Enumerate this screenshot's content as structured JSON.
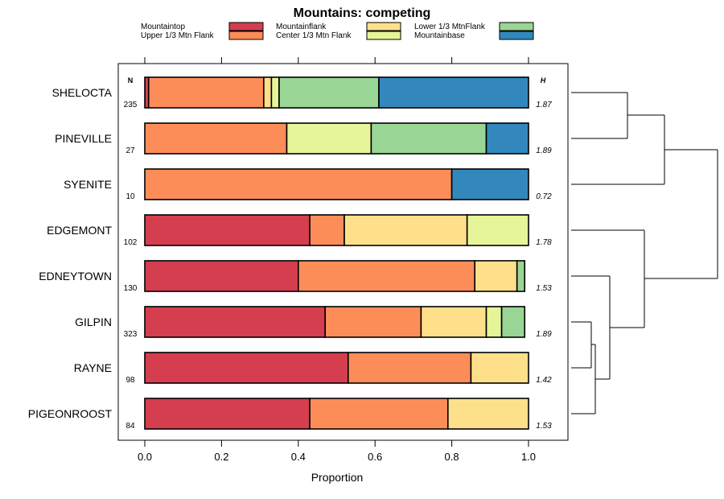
{
  "chart_data": {
    "type": "bar",
    "stacked": true,
    "orientation": "horizontal",
    "title": "Mountains: competing",
    "xlabel": "Proportion",
    "xlim": [
      0,
      1
    ],
    "xticks": [
      "0.0",
      "0.2",
      "0.4",
      "0.6",
      "0.8",
      "1.0"
    ],
    "n_header": "N",
    "h_header": "H",
    "legend": [
      {
        "name": "Mountaintop",
        "color": "#d53e4f"
      },
      {
        "name": "Upper 1/3 Mtn Flank",
        "color": "#fc8d59"
      },
      {
        "name": "Mountainflank",
        "color": "#fee08b"
      },
      {
        "name": "Center 1/3 Mtn Flank",
        "color": "#e6f598"
      },
      {
        "name": "Lower 1/3 MtnFlank",
        "color": "#99d594"
      },
      {
        "name": "Mountainbase",
        "color": "#3288bd"
      }
    ],
    "categories": [
      "SHELOCTA",
      "PINEVILLE",
      "SYENITE",
      "EDGEMONT",
      "EDNEYTOWN",
      "GILPIN",
      "RAYNE",
      "PIGEONROOST"
    ],
    "n": [
      "235",
      "27",
      "10",
      "102",
      "130",
      "323",
      "98",
      "84"
    ],
    "h": [
      "1.87",
      "1.89",
      "0.72",
      "1.78",
      "1.53",
      "1.89",
      "1.42",
      "1.53"
    ],
    "series": [
      {
        "name": "Mountaintop",
        "values": [
          0.01,
          0.0,
          0.0,
          0.43,
          0.4,
          0.47,
          0.53,
          0.43
        ]
      },
      {
        "name": "Upper 1/3 Mtn Flank",
        "values": [
          0.3,
          0.37,
          0.8,
          0.09,
          0.46,
          0.25,
          0.32,
          0.36
        ]
      },
      {
        "name": "Mountainflank",
        "values": [
          0.02,
          0.0,
          0.0,
          0.32,
          0.11,
          0.17,
          0.15,
          0.21
        ]
      },
      {
        "name": "Center 1/3 Mtn Flank",
        "values": [
          0.02,
          0.22,
          0.0,
          0.16,
          0.0,
          0.04,
          0.0,
          0.0
        ]
      },
      {
        "name": "Lower 1/3 MtnFlank",
        "values": [
          0.26,
          0.3,
          0.0,
          0.0,
          0.02,
          0.06,
          0.0,
          0.0
        ]
      },
      {
        "name": "Mountainbase",
        "values": [
          0.39,
          0.11,
          0.2,
          0.0,
          0.0,
          0.0,
          0.0,
          0.0
        ]
      }
    ]
  }
}
